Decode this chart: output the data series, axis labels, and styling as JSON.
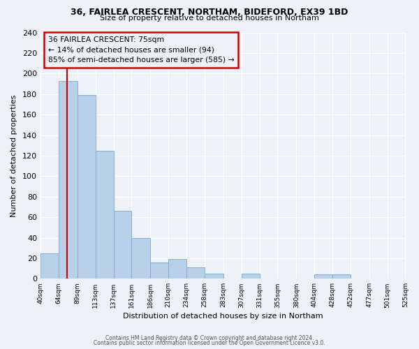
{
  "title_line1": "36, FAIRLEA CRESCENT, NORTHAM, BIDEFORD, EX39 1BD",
  "title_line2": "Size of property relative to detached houses in Northam",
  "xlabel": "Distribution of detached houses by size in Northam",
  "ylabel": "Number of detached properties",
  "bar_color": "#b8d0e8",
  "bar_edge_color": "#7aaacf",
  "marker_x": 75,
  "marker_line_color": "#cc0000",
  "annotation_title": "36 FAIRLEA CRESCENT: 75sqm",
  "annotation_line1": "← 14% of detached houses are smaller (94)",
  "annotation_line2": "85% of semi-detached houses are larger (585) →",
  "annotation_box_edge": "#cc0000",
  "bin_edges": [
    40,
    64,
    89,
    113,
    137,
    161,
    186,
    210,
    234,
    258,
    283,
    307,
    331,
    355,
    380,
    404,
    428,
    452,
    477,
    501,
    525
  ],
  "bin_heights": [
    25,
    193,
    179,
    125,
    66,
    40,
    16,
    19,
    11,
    5,
    0,
    5,
    0,
    0,
    0,
    4,
    4,
    0,
    0,
    0,
    0
  ],
  "xlim_min": 40,
  "xlim_max": 525,
  "ylim_min": 0,
  "ylim_max": 240,
  "yticks": [
    0,
    20,
    40,
    60,
    80,
    100,
    120,
    140,
    160,
    180,
    200,
    220,
    240
  ],
  "tick_labels": [
    "40sqm",
    "64sqm",
    "89sqm",
    "113sqm",
    "137sqm",
    "161sqm",
    "186sqm",
    "210sqm",
    "234sqm",
    "258sqm",
    "283sqm",
    "307sqm",
    "331sqm",
    "355sqm",
    "380sqm",
    "404sqm",
    "428sqm",
    "452sqm",
    "477sqm",
    "501sqm",
    "525sqm"
  ],
  "footnote1": "Contains HM Land Registry data © Crown copyright and database right 2024.",
  "footnote2": "Contains public sector information licensed under the Open Government Licence v3.0.",
  "background_color": "#eef2f7",
  "grid_color": "#ffffff"
}
